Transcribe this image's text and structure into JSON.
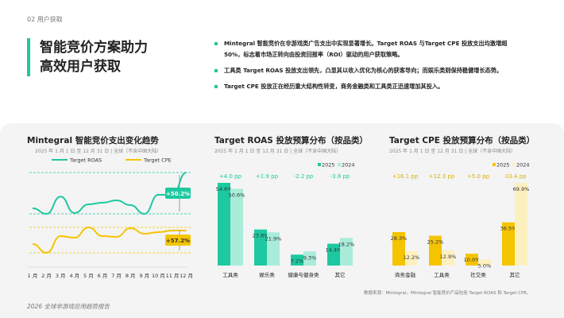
{
  "section": "02  用户获取",
  "hero": {
    "line1": "智能竞价方案助力",
    "line2": "高效用户获取"
  },
  "bullets": [
    "Mintegral 智能竞价在非游戏类广告支出中实现显著增长。Target ROAS 与Target CPE 投放支出均激增超 50%，标志着市场正转向由投资回报率（ROI）驱动的用户获取策略。",
    "工具类 Target ROAS 投放支出领先，凸显其以收入优化为核心的获客导向；而娱乐类则保持稳健增长态势。",
    "Target CPE 投放正在经历重大结构性转变，商务金融类和工具类正迅速增加其投入。"
  ],
  "colors": {
    "accent": "#1ec8a0",
    "roas_2025": "#1ec8a0",
    "roas_2024": "#a8ecd9",
    "cpe_2025": "#f5c400",
    "cpe_2024": "#fdf0bf"
  },
  "chart_data": [
    {
      "type": "line",
      "title": "Mintegral 智能竞价支出变化趋势",
      "subtitle": "2025 年 1 月 1 日 至 12 月 31 日 | 全球（不含中国大陆）",
      "categories": [
        "1 月",
        "2 月",
        "3 月",
        "4 月",
        "5 月",
        "6 月",
        "7 月",
        "8 月",
        "9 月",
        "10 月",
        "11 月",
        "12 月"
      ],
      "series": [
        {
          "name": "Target ROAS",
          "values": [
            106.8,
            100,
            121,
            101,
            111.6,
            113.5,
            116.4,
            110.6,
            100,
            123.2,
            123.2,
            150.2
          ],
          "growth_label": "+50.2%"
        },
        {
          "name": "Target CPE",
          "values": [
            119.7,
            100,
            137.5,
            134,
            157.2,
            137.5,
            135.8,
            155.4,
            143,
            146.5,
            150,
            150
          ],
          "growth_label": "+57.2%"
        }
      ],
      "legend": "top"
    },
    {
      "type": "bar",
      "title": "Target ROAS 投放预算分布（按品类）",
      "subtitle": "2025 年 1 月 1 日 至 12 月 31 日 | 全球（不含中国大陆）",
      "categories": [
        "工具类",
        "娱乐类",
        "健康与健身类",
        "其它"
      ],
      "series": [
        {
          "name": "2025",
          "values": [
            54.6,
            23.8,
            7.2,
            14.4
          ]
        },
        {
          "name": "2024",
          "values": [
            50.6,
            21.9,
            9.3,
            18.2
          ]
        }
      ],
      "deltas": [
        "+4.0 pp",
        "+1.9 pp",
        "-2.2 pp",
        "-3.8 pp"
      ],
      "legend": "top-right"
    },
    {
      "type": "bar",
      "title": "Target CPE 投放预算分布（按品类）",
      "subtitle": "2025 年 1 月 1 日 至 12 月 31 日 | 全球（不含中国大陆）",
      "categories": [
        "商务金融",
        "工具类",
        "社交类",
        "其它"
      ],
      "series": [
        {
          "name": "2025",
          "values": [
            28.3,
            25.2,
            10.0,
            36.5
          ]
        },
        {
          "name": "2024",
          "values": [
            12.2,
            12.9,
            5.0,
            69.9
          ]
        }
      ],
      "deltas": [
        "+16.1 pp",
        "+12.3 pp",
        "+5.0 pp",
        "-33.4 pp"
      ],
      "legend": "top-right"
    }
  ],
  "source": "数据来源：Mintegral。Mintegral 智能竞价产品包括 Target ROAS 和 Target CPE。",
  "footer": "2026 全球非游戏应用趋势报告"
}
